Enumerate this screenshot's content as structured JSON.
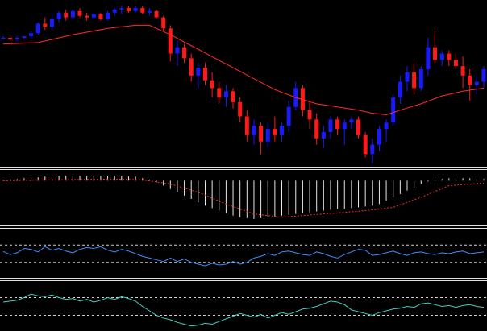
{
  "colors": {
    "background": "#000000",
    "bull_candle": "#1a1aff",
    "bear_candle": "#ff1a1a",
    "wick_bull": "#1a1aff",
    "wick_bear": "#ff1a1a",
    "moving_average": "#ff2a2a",
    "macd_histogram": "#e8e8e8",
    "macd_signal": "#ff2a2a",
    "oscillator_1": "#3d8fff",
    "oscillator_2": "#3fd0c0",
    "level_lines": "#d0d0d0",
    "separator": "#e0e0e0"
  },
  "chart_data": [
    {
      "type": "candlestick",
      "panel": "price",
      "grid": false,
      "ylim": [
        0,
        100
      ],
      "candles": [
        [
          80,
          81,
          79,
          80
        ],
        [
          80,
          80,
          78,
          79
        ],
        [
          79,
          81,
          78,
          80
        ],
        [
          80,
          81,
          79,
          81
        ],
        [
          81,
          84,
          79,
          83
        ],
        [
          83,
          90,
          82,
          89
        ],
        [
          89,
          93,
          85,
          87
        ],
        [
          87,
          95,
          86,
          92
        ],
        [
          92,
          97,
          90,
          96
        ],
        [
          96,
          98,
          91,
          93
        ],
        [
          93,
          98,
          92,
          97
        ],
        [
          97,
          99,
          93,
          94
        ],
        [
          94,
          96,
          91,
          93
        ],
        [
          93,
          96,
          92,
          95
        ],
        [
          95,
          96,
          91,
          92
        ],
        [
          92,
          97,
          91,
          96
        ],
        [
          96,
          99,
          94,
          98
        ],
        [
          98,
          100,
          95,
          99
        ],
        [
          99,
          100,
          96,
          97
        ],
        [
          97,
          100,
          96,
          99
        ],
        [
          99,
          100,
          95,
          96
        ],
        [
          96,
          99,
          94,
          97
        ],
        [
          97,
          98,
          92,
          93
        ],
        [
          93,
          94,
          84,
          86
        ],
        [
          86,
          88,
          65,
          70
        ],
        [
          70,
          78,
          62,
          74
        ],
        [
          74,
          76,
          64,
          67
        ],
        [
          67,
          70,
          52,
          56
        ],
        [
          56,
          64,
          48,
          61
        ],
        [
          61,
          64,
          50,
          53
        ],
        [
          53,
          58,
          42,
          48
        ],
        [
          48,
          52,
          38,
          42
        ],
        [
          42,
          50,
          36,
          46
        ],
        [
          46,
          48,
          35,
          39
        ],
        [
          39,
          42,
          26,
          30
        ],
        [
          30,
          34,
          14,
          18
        ],
        [
          18,
          28,
          12,
          24
        ],
        [
          24,
          26,
          6,
          14
        ],
        [
          14,
          26,
          10,
          22
        ],
        [
          22,
          30,
          14,
          18
        ],
        [
          18,
          26,
          14,
          24
        ],
        [
          24,
          40,
          20,
          36
        ],
        [
          36,
          52,
          34,
          48
        ],
        [
          48,
          50,
          30,
          34
        ],
        [
          34,
          40,
          22,
          28
        ],
        [
          28,
          32,
          12,
          16
        ],
        [
          16,
          24,
          10,
          20
        ],
        [
          20,
          30,
          16,
          28
        ],
        [
          28,
          30,
          18,
          22
        ],
        [
          22,
          28,
          12,
          26
        ],
        [
          26,
          30,
          22,
          28
        ],
        [
          28,
          30,
          16,
          18
        ],
        [
          18,
          20,
          4,
          6
        ],
        [
          6,
          16,
          0,
          12
        ],
        [
          12,
          24,
          8,
          22
        ],
        [
          22,
          28,
          14,
          26
        ],
        [
          26,
          44,
          24,
          42
        ],
        [
          42,
          56,
          38,
          52
        ],
        [
          52,
          62,
          46,
          58
        ],
        [
          58,
          64,
          44,
          48
        ],
        [
          48,
          62,
          46,
          60
        ],
        [
          60,
          80,
          56,
          74
        ],
        [
          74,
          84,
          64,
          66
        ],
        [
          66,
          72,
          62,
          70
        ],
        [
          70,
          72,
          62,
          66
        ],
        [
          66,
          70,
          60,
          62
        ],
        [
          62,
          68,
          48,
          56
        ],
        [
          56,
          60,
          40,
          50
        ],
        [
          50,
          56,
          44,
          52
        ],
        [
          52,
          62,
          48,
          60
        ]
      ],
      "moving_average": [
        [
          0,
          76
        ],
        [
          5,
          77
        ],
        [
          10,
          82
        ],
        [
          15,
          86
        ],
        [
          19,
          88
        ],
        [
          21,
          88
        ],
        [
          24,
          82
        ],
        [
          27,
          75
        ],
        [
          30,
          68
        ],
        [
          33,
          61
        ],
        [
          36,
          54
        ],
        [
          39,
          47
        ],
        [
          42,
          42
        ],
        [
          45,
          38
        ],
        [
          48,
          36
        ],
        [
          51,
          34
        ],
        [
          53,
          32
        ],
        [
          55,
          31
        ],
        [
          57,
          34
        ],
        [
          60,
          38
        ],
        [
          63,
          43
        ],
        [
          66,
          46
        ],
        [
          69,
          48
        ]
      ]
    },
    {
      "type": "bar",
      "panel": "macd",
      "zero_line": 0,
      "ylim": [
        -50,
        10
      ],
      "values": [
        1,
        2,
        2,
        3,
        4,
        4,
        5,
        5,
        6,
        6,
        6,
        6,
        6,
        6,
        6,
        6,
        6,
        6,
        5,
        5,
        3,
        1,
        -2,
        -6,
        -10,
        -14,
        -18,
        -22,
        -26,
        -30,
        -33,
        -36,
        -39,
        -42,
        -44,
        -45,
        -46,
        -45,
        -44,
        -43,
        -42,
        -41,
        -40,
        -39,
        -38,
        -37,
        -36,
        -35,
        -34,
        -34,
        -33,
        -32,
        -31,
        -30,
        -28,
        -24,
        -20,
        -16,
        -12,
        -8,
        -4,
        -1,
        1,
        2,
        3,
        3,
        3,
        3,
        2,
        2
      ],
      "signal": [
        [
          0,
          0
        ],
        [
          8,
          1
        ],
        [
          16,
          2
        ],
        [
          20,
          1
        ],
        [
          24,
          -4
        ],
        [
          28,
          -14
        ],
        [
          32,
          -28
        ],
        [
          36,
          -40
        ],
        [
          40,
          -44
        ],
        [
          46,
          -40
        ],
        [
          52,
          -36
        ],
        [
          56,
          -32
        ],
        [
          60,
          -20
        ],
        [
          64,
          -6
        ],
        [
          69,
          -3
        ]
      ]
    },
    {
      "type": "line",
      "panel": "oscillator_1",
      "ylim": [
        0,
        100
      ],
      "levels": [
        30,
        70
      ],
      "values": [
        55,
        48,
        52,
        62,
        60,
        54,
        66,
        58,
        62,
        56,
        52,
        60,
        64,
        62,
        66,
        58,
        54,
        60,
        56,
        50,
        44,
        40,
        36,
        32,
        40,
        32,
        38,
        30,
        26,
        22,
        28,
        24,
        26,
        32,
        26,
        30,
        40,
        44,
        50,
        46,
        54,
        56,
        52,
        48,
        46,
        54,
        50,
        44,
        40,
        48,
        54,
        60,
        58,
        46,
        48,
        52,
        56,
        50,
        46,
        52,
        54,
        50,
        48,
        52,
        50,
        54,
        56,
        50,
        52,
        54
      ]
    },
    {
      "type": "line",
      "panel": "oscillator_2",
      "ylim": [
        0,
        100
      ],
      "levels": [
        30,
        70
      ],
      "values": [
        60,
        62,
        64,
        70,
        78,
        74,
        72,
        76,
        70,
        66,
        68,
        62,
        66,
        60,
        64,
        70,
        66,
        72,
        68,
        62,
        50,
        40,
        30,
        24,
        20,
        14,
        10,
        6,
        8,
        12,
        10,
        16,
        22,
        28,
        34,
        30,
        26,
        32,
        24,
        30,
        36,
        32,
        38,
        44,
        46,
        50,
        56,
        62,
        60,
        54,
        42,
        38,
        34,
        30,
        36,
        40,
        44,
        46,
        50,
        48,
        56,
        58,
        54,
        50,
        52,
        48,
        52,
        54,
        50,
        48
      ]
    }
  ]
}
